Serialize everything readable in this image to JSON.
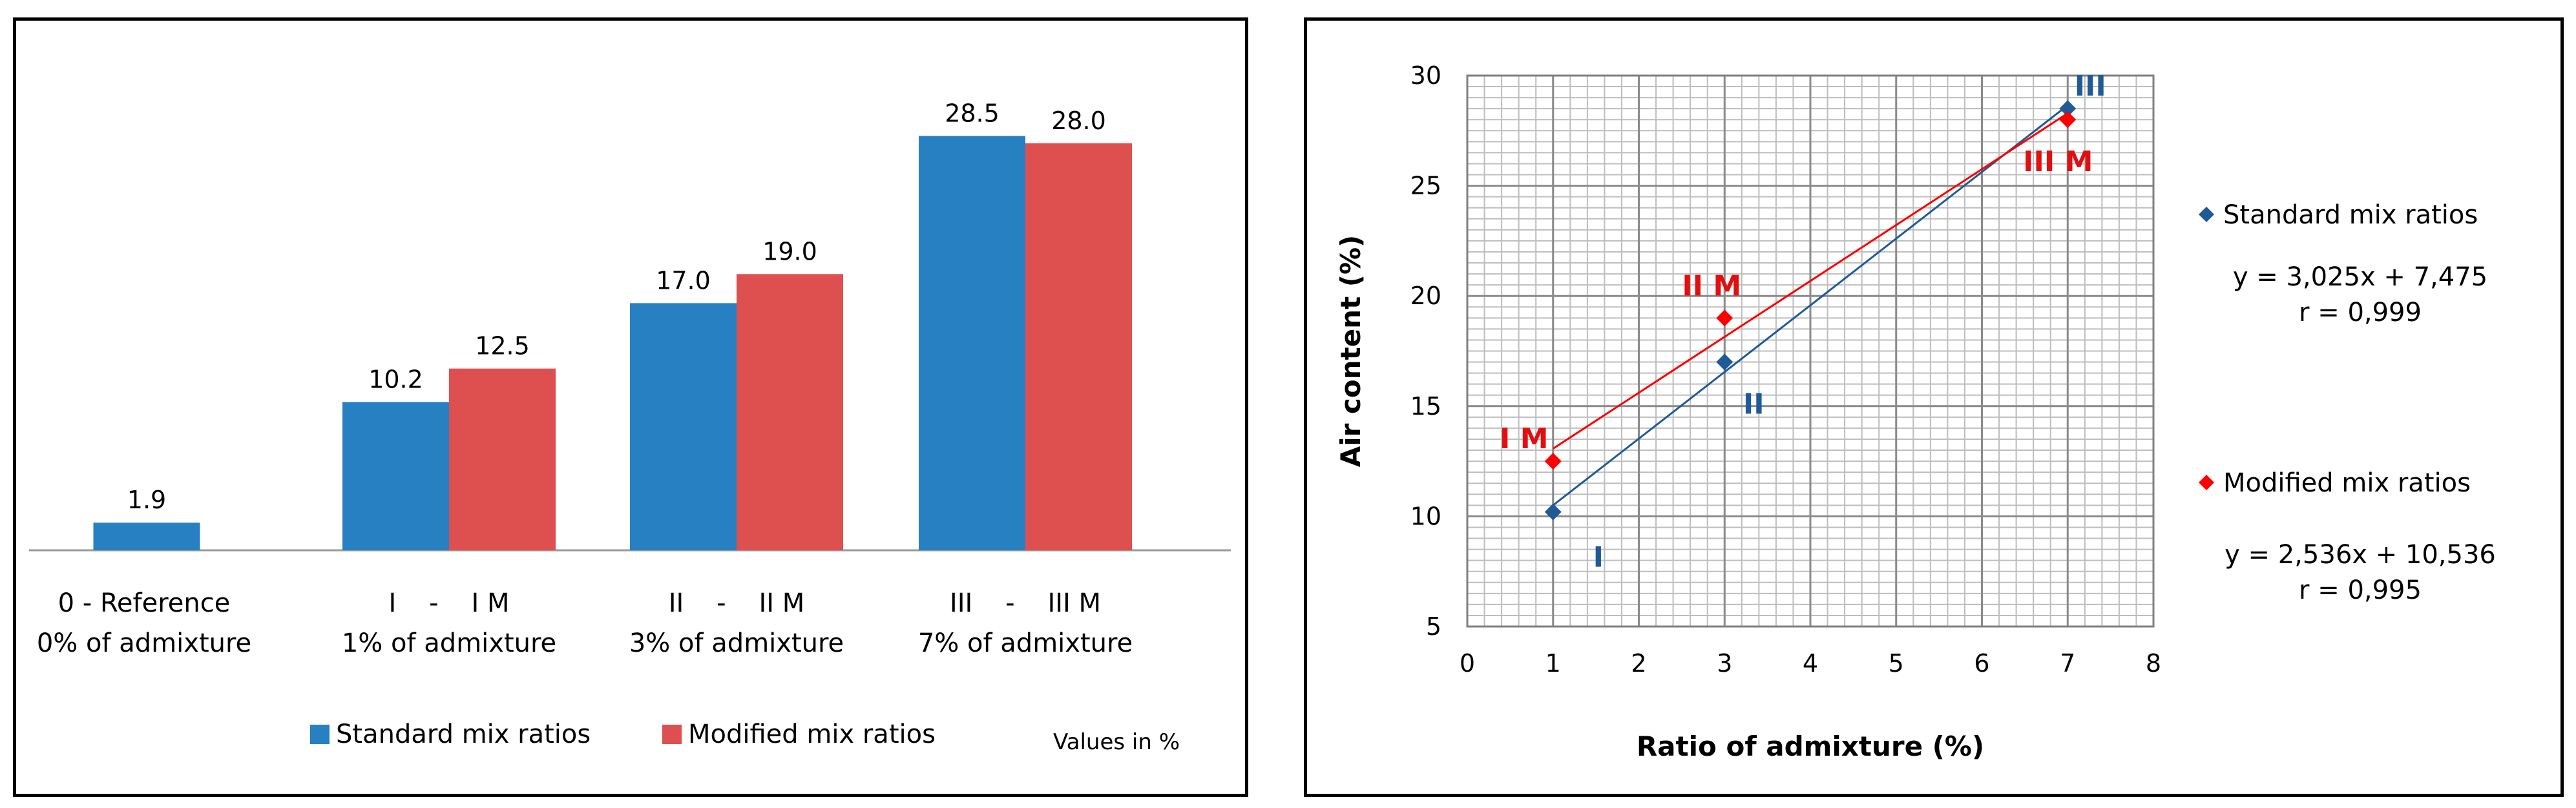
{
  "chart_data": [
    {
      "type": "bar",
      "title": "",
      "categories": [
        {
          "line1": "0 - Reference",
          "line2": "0% of admixture"
        },
        {
          "line1": "I    -    I M",
          "line2": "1% of admixture"
        },
        {
          "line1": "II    -    II M",
          "line2": "3% of admixture"
        },
        {
          "line1": "III    -    III M",
          "line2": "7% of admixture"
        }
      ],
      "series": [
        {
          "name": "Standard mix ratios",
          "color": "#2680C2",
          "values": [
            1.9,
            10.2,
            17.0,
            28.5
          ],
          "labels": [
            "1.9",
            "10.2",
            "17.0",
            "28.5"
          ]
        },
        {
          "name": "Modified mix ratios",
          "color": "#DE5050",
          "values": [
            null,
            12.5,
            19.0,
            28.0
          ],
          "labels": [
            "",
            "12.5",
            "19.0",
            "28.0"
          ]
        }
      ],
      "ylim": [
        0,
        30
      ],
      "note": "Values in %",
      "legend_position": "bottom"
    },
    {
      "type": "scatter",
      "xlabel": "Ratio of admixture (%)",
      "ylabel": "Air content (%)",
      "xlim": [
        0,
        8
      ],
      "ylim": [
        5,
        30
      ],
      "xticks": [
        "0",
        "1",
        "2",
        "3",
        "4",
        "5",
        "6",
        "7",
        "8"
      ],
      "yticks": [
        "5",
        "10",
        "15",
        "20",
        "25",
        "30"
      ],
      "grid": true,
      "series": [
        {
          "name": "Standard mix ratios",
          "color": "#1F5A96",
          "label_color": "#1F5A96",
          "x": [
            1,
            3,
            7
          ],
          "y": [
            10.2,
            17.0,
            28.5
          ],
          "point_labels": [
            "I",
            "II",
            "III"
          ],
          "trendline": {
            "slope": 3.025,
            "intercept": 7.475
          },
          "equation": "y = 3,025x + 7,475",
          "r": "r = 0,999"
        },
        {
          "name": "Modified mix ratios",
          "color": "#FF0000",
          "label_color": "#E01010",
          "x": [
            1,
            3,
            7
          ],
          "y": [
            12.5,
            19.0,
            28.0
          ],
          "point_labels": [
            "I M",
            "II M",
            "III M"
          ],
          "trendline": {
            "slope": 2.536,
            "intercept": 10.536
          },
          "equation": "y = 2,536x + 10,536",
          "r": "r = 0,995"
        }
      ],
      "legend_position": "right"
    }
  ]
}
